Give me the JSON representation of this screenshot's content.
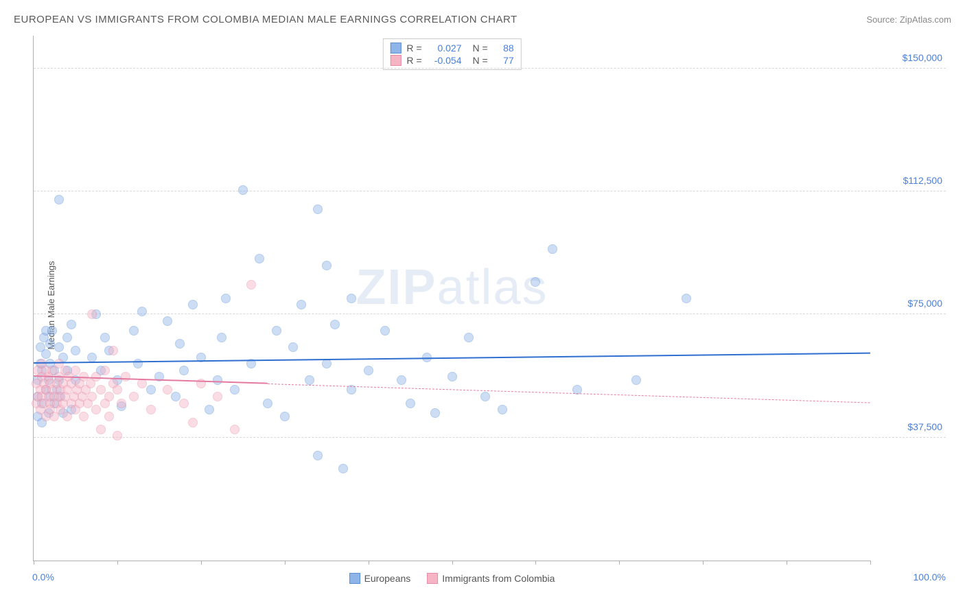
{
  "header": {
    "title": "EUROPEAN VS IMMIGRANTS FROM COLOMBIA MEDIAN MALE EARNINGS CORRELATION CHART",
    "source_prefix": "Source: ",
    "source_name": "ZipAtlas.com"
  },
  "chart": {
    "type": "scatter",
    "ylabel": "Median Male Earnings",
    "watermark": "ZIPatlas",
    "background_color": "#ffffff",
    "grid_color": "#d8d8d8",
    "axis_color": "#b0b0b0",
    "label_color": "#4a7fd8",
    "xlim": [
      0,
      100
    ],
    "ylim": [
      0,
      160000
    ],
    "yticks": [
      {
        "value": 37500,
        "label": "$37,500"
      },
      {
        "value": 75000,
        "label": "$75,000"
      },
      {
        "value": 112500,
        "label": "$112,500"
      },
      {
        "value": 150000,
        "label": "$150,000"
      }
    ],
    "xticks": [
      0,
      10,
      20,
      30,
      40,
      50,
      60,
      70,
      80,
      90,
      100
    ],
    "xaxis_left_label": "0.0%",
    "xaxis_right_label": "100.0%",
    "marker_radius": 7,
    "marker_opacity": 0.45,
    "series": [
      {
        "name": "Europeans",
        "fill_color": "#8fb4e8",
        "stroke_color": "#5a8fd8",
        "trend_color": "#2f6fd0",
        "R": "0.027",
        "N": "88",
        "trend": {
          "x1": 0,
          "y1": 60000,
          "x2": 100,
          "y2": 63000,
          "dashed_after_x": null
        },
        "points": [
          [
            0.5,
            44000
          ],
          [
            0.5,
            50000
          ],
          [
            0.5,
            55000
          ],
          [
            0.8,
            60000
          ],
          [
            0.8,
            65000
          ],
          [
            1,
            42000
          ],
          [
            1,
            48000
          ],
          [
            1,
            58000
          ],
          [
            1.2,
            68000
          ],
          [
            1.5,
            52000
          ],
          [
            1.5,
            63000
          ],
          [
            1.5,
            70000
          ],
          [
            1.8,
            45000
          ],
          [
            1.8,
            55000
          ],
          [
            2,
            50000
          ],
          [
            2,
            60000
          ],
          [
            2,
            66000
          ],
          [
            2.2,
            70000
          ],
          [
            2.5,
            48000
          ],
          [
            2.5,
            58000
          ],
          [
            2.8,
            52000
          ],
          [
            3,
            110000
          ],
          [
            3,
            65000
          ],
          [
            3,
            55000
          ],
          [
            3.2,
            50000
          ],
          [
            3.5,
            45000
          ],
          [
            3.5,
            62000
          ],
          [
            4,
            58000
          ],
          [
            4,
            68000
          ],
          [
            4.5,
            46000
          ],
          [
            4.5,
            72000
          ],
          [
            5,
            55000
          ],
          [
            5,
            64000
          ],
          [
            7,
            62000
          ],
          [
            7.5,
            75000
          ],
          [
            8,
            58000
          ],
          [
            8.5,
            68000
          ],
          [
            9,
            64000
          ],
          [
            10,
            55000
          ],
          [
            10.5,
            47000
          ],
          [
            12,
            70000
          ],
          [
            12.5,
            60000
          ],
          [
            13,
            76000
          ],
          [
            14,
            52000
          ],
          [
            15,
            56000
          ],
          [
            16,
            73000
          ],
          [
            17,
            50000
          ],
          [
            17.5,
            66000
          ],
          [
            18,
            58000
          ],
          [
            19,
            78000
          ],
          [
            20,
            62000
          ],
          [
            21,
            46000
          ],
          [
            22,
            55000
          ],
          [
            22.5,
            68000
          ],
          [
            23,
            80000
          ],
          [
            24,
            52000
          ],
          [
            25,
            113000
          ],
          [
            26,
            60000
          ],
          [
            27,
            92000
          ],
          [
            28,
            48000
          ],
          [
            29,
            70000
          ],
          [
            30,
            44000
          ],
          [
            31,
            65000
          ],
          [
            32,
            78000
          ],
          [
            33,
            55000
          ],
          [
            34,
            107000
          ],
          [
            34,
            32000
          ],
          [
            35,
            60000
          ],
          [
            35,
            90000
          ],
          [
            36,
            72000
          ],
          [
            37,
            28000
          ],
          [
            38,
            80000
          ],
          [
            38,
            52000
          ],
          [
            40,
            58000
          ],
          [
            42,
            70000
          ],
          [
            44,
            55000
          ],
          [
            45,
            48000
          ],
          [
            47,
            62000
          ],
          [
            48,
            45000
          ],
          [
            50,
            56000
          ],
          [
            52,
            68000
          ],
          [
            54,
            50000
          ],
          [
            56,
            46000
          ],
          [
            60,
            85000
          ],
          [
            62,
            95000
          ],
          [
            65,
            52000
          ],
          [
            72,
            55000
          ],
          [
            78,
            80000
          ]
        ]
      },
      {
        "name": "Immigrants from Colombia",
        "fill_color": "#f5b5c5",
        "stroke_color": "#e88aa5",
        "trend_color": "#e57aa0",
        "R": "-0.054",
        "N": "77",
        "trend": {
          "x1": 0,
          "y1": 56000,
          "x2": 100,
          "y2": 48000,
          "dashed_after_x": 28
        },
        "points": [
          [
            0.3,
            48000
          ],
          [
            0.3,
            54000
          ],
          [
            0.5,
            50000
          ],
          [
            0.5,
            58000
          ],
          [
            0.8,
            46000
          ],
          [
            0.8,
            52000
          ],
          [
            1,
            56000
          ],
          [
            1,
            60000
          ],
          [
            1,
            50000
          ],
          [
            1.2,
            48000
          ],
          [
            1.2,
            54000
          ],
          [
            1.5,
            44000
          ],
          [
            1.5,
            52000
          ],
          [
            1.5,
            58000
          ],
          [
            1.8,
            50000
          ],
          [
            1.8,
            56000
          ],
          [
            2,
            48000
          ],
          [
            2,
            54000
          ],
          [
            2,
            46000
          ],
          [
            2.2,
            52000
          ],
          [
            2.2,
            58000
          ],
          [
            2.5,
            50000
          ],
          [
            2.5,
            44000
          ],
          [
            2.8,
            54000
          ],
          [
            2.8,
            48000
          ],
          [
            3,
            56000
          ],
          [
            3,
            50000
          ],
          [
            3,
            60000
          ],
          [
            3.2,
            46000
          ],
          [
            3.2,
            52000
          ],
          [
            3.5,
            54000
          ],
          [
            3.5,
            48000
          ],
          [
            3.8,
            58000
          ],
          [
            3.8,
            50000
          ],
          [
            4,
            44000
          ],
          [
            4,
            52000
          ],
          [
            4.2,
            56000
          ],
          [
            4.5,
            48000
          ],
          [
            4.5,
            54000
          ],
          [
            4.8,
            50000
          ],
          [
            5,
            58000
          ],
          [
            5,
            46000
          ],
          [
            5.2,
            52000
          ],
          [
            5.5,
            48000
          ],
          [
            5.5,
            54000
          ],
          [
            5.8,
            50000
          ],
          [
            6,
            56000
          ],
          [
            6,
            44000
          ],
          [
            6.2,
            52000
          ],
          [
            6.5,
            48000
          ],
          [
            6.8,
            54000
          ],
          [
            7,
            75000
          ],
          [
            7,
            50000
          ],
          [
            7.5,
            46000
          ],
          [
            7.5,
            56000
          ],
          [
            8,
            40000
          ],
          [
            8,
            52000
          ],
          [
            8.5,
            48000
          ],
          [
            8.5,
            58000
          ],
          [
            9,
            50000
          ],
          [
            9,
            44000
          ],
          [
            9.5,
            54000
          ],
          [
            9.5,
            64000
          ],
          [
            10,
            38000
          ],
          [
            10,
            52000
          ],
          [
            10.5,
            48000
          ],
          [
            11,
            56000
          ],
          [
            12,
            50000
          ],
          [
            13,
            54000
          ],
          [
            14,
            46000
          ],
          [
            16,
            52000
          ],
          [
            18,
            48000
          ],
          [
            19,
            42000
          ],
          [
            20,
            54000
          ],
          [
            22,
            50000
          ],
          [
            24,
            40000
          ],
          [
            26,
            84000
          ]
        ]
      }
    ]
  },
  "legend_top": {
    "r_label": "R =",
    "n_label": "N ="
  },
  "legend_bottom": [
    {
      "label": "Europeans",
      "fill": "#8fb4e8",
      "stroke": "#5a8fd8"
    },
    {
      "label": "Immigrants from Colombia",
      "fill": "#f5b5c5",
      "stroke": "#e88aa5"
    }
  ]
}
